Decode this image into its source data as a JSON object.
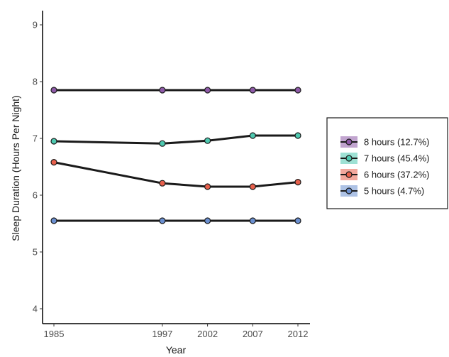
{
  "chart_data": {
    "type": "line",
    "xlabel": "Year",
    "ylabel": "Sleep Duration (Hours Per Night)",
    "x": [
      1985,
      1997,
      2002,
      2007,
      2012
    ],
    "xlim": [
      1985,
      2012
    ],
    "ylim": [
      3.75,
      9.25
    ],
    "yticks": [
      4,
      5,
      6,
      7,
      8,
      9
    ],
    "grid": false,
    "legend_position": "right",
    "series": [
      {
        "name": "8 hours (12.7%)",
        "color": "#8e5aa8",
        "values": [
          7.85,
          7.85,
          7.85,
          7.85,
          7.85
        ]
      },
      {
        "name": "7 hours (45.4%)",
        "color": "#4ec9b0",
        "values": [
          6.95,
          6.91,
          6.96,
          7.05,
          7.05
        ]
      },
      {
        "name": "6 hours (37.2%)",
        "color": "#e8604c",
        "values": [
          6.58,
          6.21,
          6.15,
          6.15,
          6.23
        ]
      },
      {
        "name": "5 hours (4.7%)",
        "color": "#6a8fd0",
        "values": [
          5.55,
          5.55,
          5.55,
          5.55,
          5.55
        ]
      }
    ]
  }
}
